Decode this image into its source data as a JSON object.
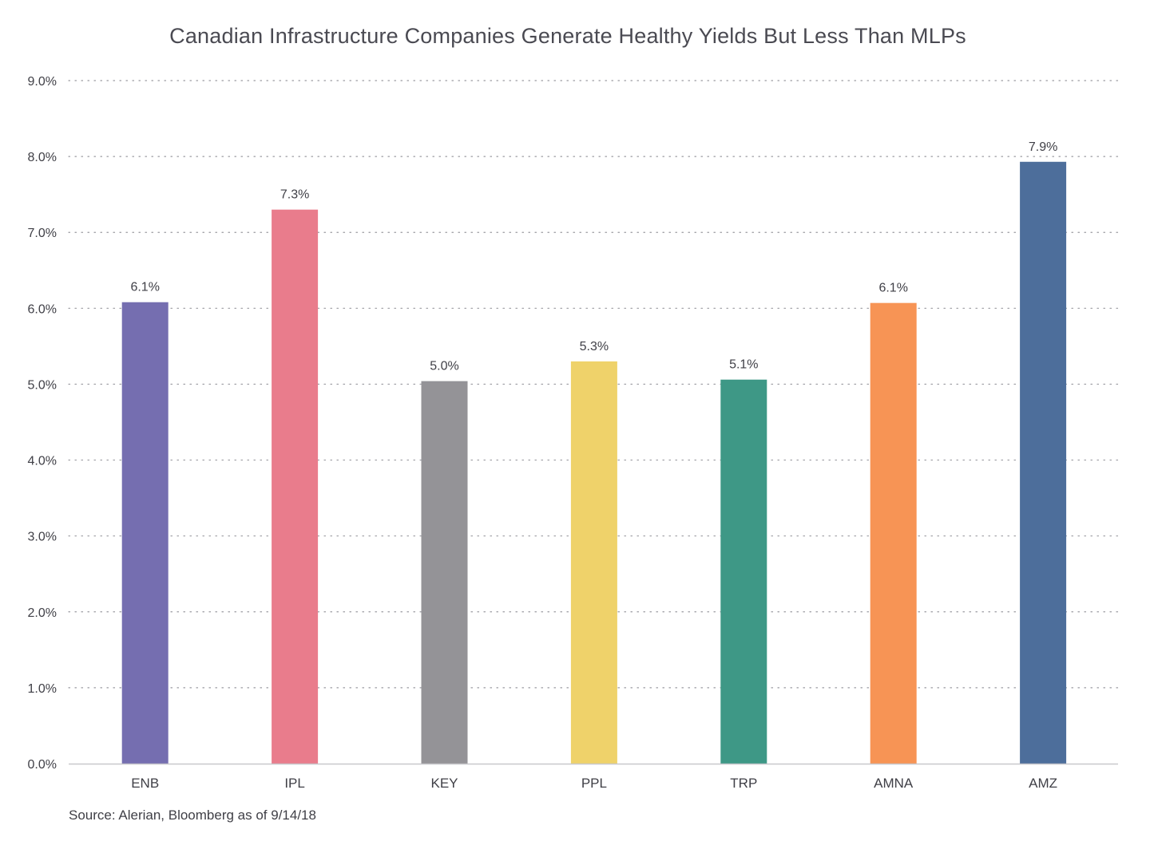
{
  "chart_data": {
    "type": "bar",
    "title": "Canadian Infrastructure Companies Generate Healthy Yields But Less Than MLPs",
    "xlabel": "",
    "ylabel": "",
    "categories": [
      "ENB",
      "IPL",
      "KEY",
      "PPL",
      "TRP",
      "AMNA",
      "AMZ"
    ],
    "values": [
      6.08,
      7.3,
      5.04,
      5.3,
      5.06,
      6.07,
      7.93
    ],
    "value_labels": [
      "6.1%",
      "7.3%",
      "5.0%",
      "5.3%",
      "5.1%",
      "6.1%",
      "7.9%"
    ],
    "colors": [
      "#756eb0",
      "#e97c8c",
      "#949397",
      "#efd26a",
      "#3e9886",
      "#f79455",
      "#4d6e9b"
    ],
    "ylim": [
      0,
      9
    ],
    "yticks": [
      0,
      1,
      2,
      3,
      4,
      5,
      6,
      7,
      8,
      9
    ],
    "ytick_labels": [
      "0.0%",
      "1.0%",
      "2.0%",
      "3.0%",
      "4.0%",
      "5.0%",
      "6.0%",
      "7.0%",
      "8.0%",
      "9.0%"
    ],
    "grid": true,
    "grid_style": "dotted",
    "legend": false
  },
  "source_note": "Source: Alerian, Bloomberg as of 9/14/18"
}
